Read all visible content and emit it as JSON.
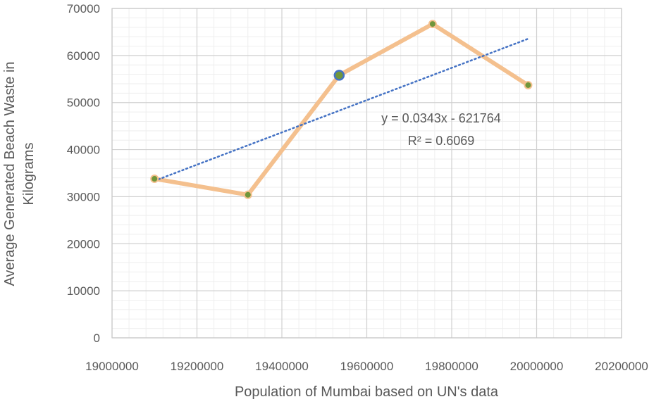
{
  "chart_data": {
    "type": "scatter",
    "xlabel": "Population of Mumbai based on UN's data",
    "ylabel_lines": [
      "Average Generated Beach Waste in",
      "Kilograms"
    ],
    "xlim": [
      19000000,
      20200000
    ],
    "ylim": [
      0,
      70000
    ],
    "x_ticks": [
      "19000000",
      "19200000",
      "19400000",
      "19600000",
      "19800000",
      "20000000",
      "20200000"
    ],
    "y_ticks": [
      "0",
      "10000",
      "20000",
      "30000",
      "40000",
      "50000",
      "60000",
      "70000"
    ],
    "grid": true,
    "series": [
      {
        "x": [
          19100000,
          19320000,
          19535000,
          19755000,
          19980000
        ],
        "y": [
          33800,
          30400,
          55800,
          66700,
          53700
        ],
        "line_color": "#f4c08e",
        "marker_color": "#70963b",
        "highlight_index": 2,
        "highlight_color": "#4472c4"
      }
    ],
    "trendline": {
      "type": "linear",
      "slope": 0.0343,
      "intercept": -621764,
      "x_range": [
        19100000,
        19980000
      ],
      "color": "#4472c4",
      "equation": "y = 0.0343x - 621764",
      "r_squared": "R² = 0.6069"
    }
  }
}
